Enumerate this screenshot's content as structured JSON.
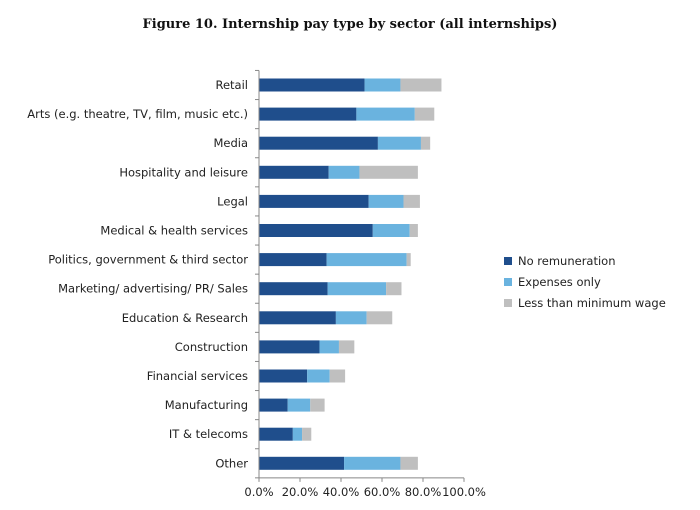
{
  "title": "Figure 10. Internship pay type by sector (all internships)",
  "chart_data": {
    "type": "bar",
    "orientation": "horizontal",
    "stacked": true,
    "title": "Figure 10. Internship pay type by sector (all internships)",
    "categories": [
      "Retail",
      "Arts (e.g. theatre, TV, film, music etc.)",
      "Media",
      "Hospitality and leisure",
      "Legal",
      "Medical & health services",
      "Politics, government & third sector",
      "Marketing/ advertising/ PR/ Sales",
      "Education & Research",
      "Construction",
      "Financial services",
      "Manufacturing",
      "IT & telecoms",
      "Other"
    ],
    "series": [
      {
        "name": "No remuneration",
        "color": "#1f4e8c",
        "values": [
          51.5,
          47.5,
          58,
          34,
          53.5,
          55.5,
          33,
          33.5,
          37.5,
          29.5,
          23.5,
          14,
          16.5,
          41.5
        ]
      },
      {
        "name": "Expenses only",
        "color": "#6ab3df",
        "values": [
          17.5,
          28.5,
          21,
          15,
          17,
          18,
          39,
          28.5,
          15,
          9.5,
          11,
          11,
          4.5,
          27.5
        ]
      },
      {
        "name": "Less than minimum wage",
        "color": "#bfbfbf",
        "values": [
          20,
          9.5,
          4.5,
          28.5,
          8,
          4,
          2,
          7.5,
          12.5,
          7.5,
          7.5,
          7,
          4.5,
          8.5
        ]
      }
    ],
    "xlim": [
      0,
      100
    ],
    "xticks": [
      "0.0%",
      "20.0%",
      "40.0%",
      "60.0%",
      "80.0%",
      "100.0%"
    ],
    "legend_position": "right",
    "grid": false
  }
}
